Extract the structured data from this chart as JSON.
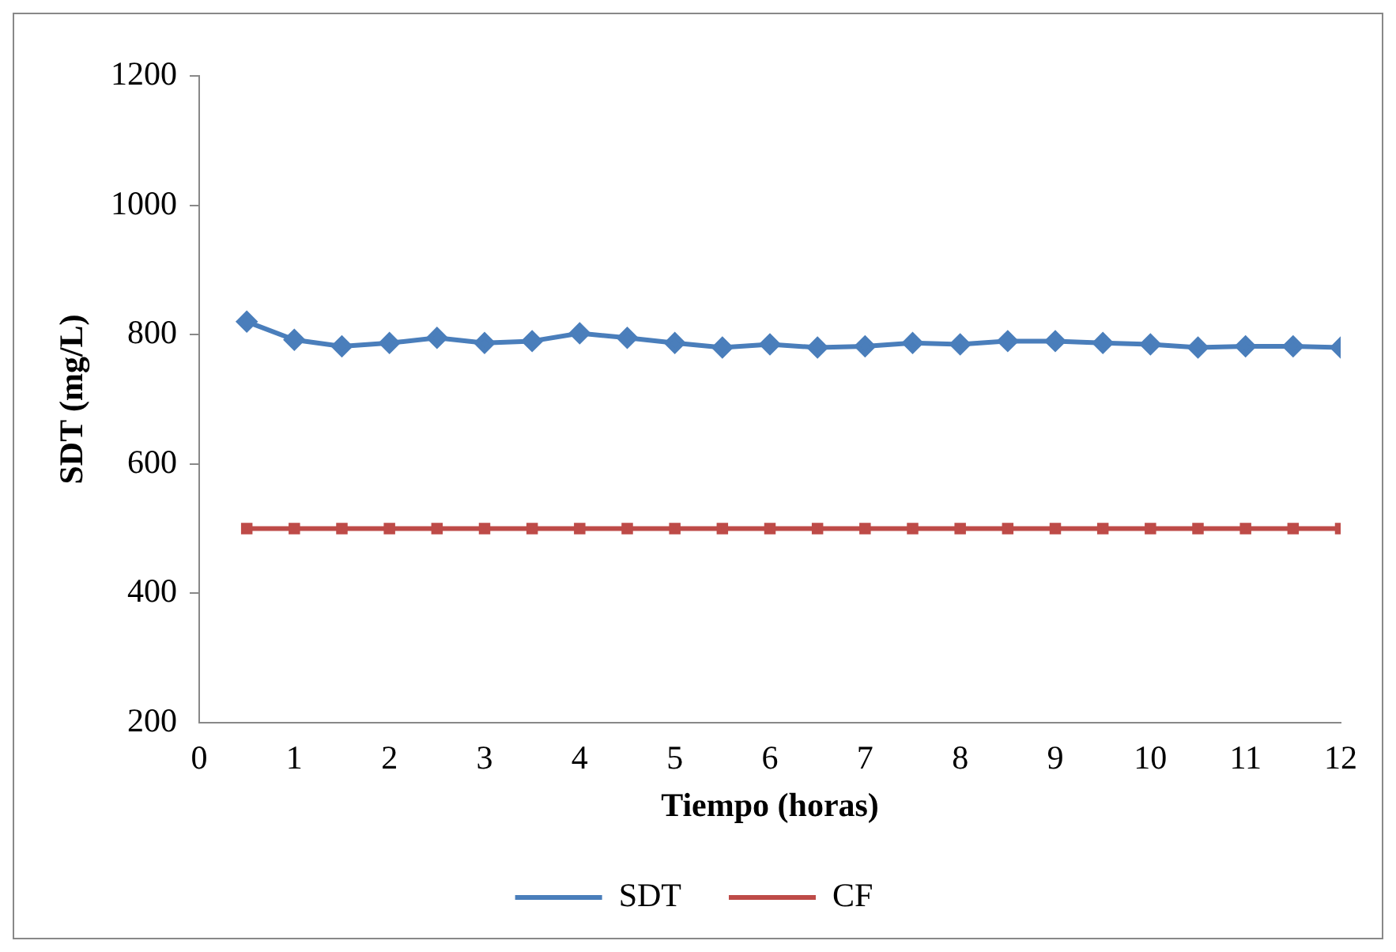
{
  "chart_data": {
    "type": "line",
    "xlabel": "Tiempo (horas)",
    "ylabel": "SDT (mg/L)",
    "x": [
      0.5,
      1,
      1.5,
      2,
      2.5,
      3,
      3.5,
      4,
      4.5,
      5,
      5.5,
      6,
      6.5,
      7,
      7.5,
      8,
      8.5,
      9,
      9.5,
      10,
      10.5,
      11,
      11.5,
      12
    ],
    "series": [
      {
        "name": "SDT",
        "color": "#4a7ebb",
        "marker": "diamond",
        "values": [
          820,
          792,
          782,
          787,
          795,
          787,
          790,
          802,
          795,
          787,
          780,
          785,
          780,
          782,
          787,
          785,
          790,
          790,
          787,
          785,
          780,
          782,
          782,
          780
        ]
      },
      {
        "name": "CF",
        "color": "#be4b48",
        "marker": "square",
        "values": [
          500,
          500,
          500,
          500,
          500,
          500,
          500,
          500,
          500,
          500,
          500,
          500,
          500,
          500,
          500,
          500,
          500,
          500,
          500,
          500,
          500,
          500,
          500,
          500
        ]
      }
    ],
    "xlim": [
      0,
      12
    ],
    "xticks": [
      0,
      1,
      2,
      3,
      4,
      5,
      6,
      7,
      8,
      9,
      10,
      11,
      12
    ],
    "ylim": [
      200,
      1200
    ],
    "yticks": [
      200,
      400,
      600,
      800,
      1000,
      1200
    ],
    "grid": false,
    "legend": "bottom",
    "line_style": "solid"
  }
}
